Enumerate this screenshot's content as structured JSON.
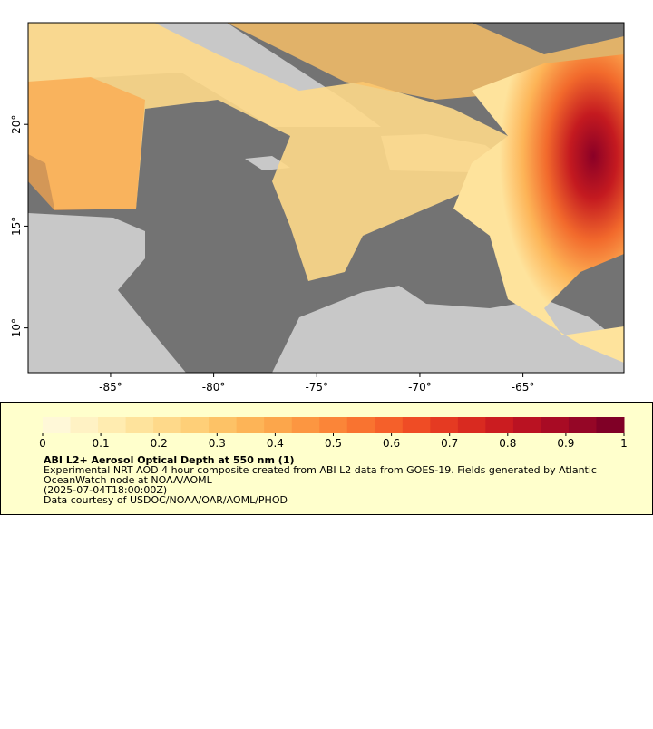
{
  "map": {
    "xlim": [
      -89.0,
      -60.1
    ],
    "ylim": [
      7.8,
      25.0
    ],
    "xticks": [
      {
        "value": -85,
        "label": "-85°"
      },
      {
        "value": -80,
        "label": "-80°"
      },
      {
        "value": -75,
        "label": "-75°"
      },
      {
        "value": -70,
        "label": "-70°"
      },
      {
        "value": -65,
        "label": "-65°"
      }
    ],
    "yticks": [
      {
        "value": 10,
        "label": "10°"
      },
      {
        "value": 15,
        "label": "15°"
      },
      {
        "value": 20,
        "label": "20°"
      }
    ]
  },
  "colorbar": {
    "lim": [
      0,
      1
    ],
    "ticks": [
      0,
      0.1,
      0.2,
      0.3,
      0.4,
      0.5,
      0.6,
      0.7,
      0.8,
      0.9,
      1
    ],
    "colors": [
      "#fff8d8",
      "#fff2c4",
      "#ffecb0",
      "#fee39c",
      "#fed98a",
      "#fecf78",
      "#fdc266",
      "#fdb457",
      "#fca64b",
      "#fc9641",
      "#fb8538",
      "#f97330",
      "#f5602a",
      "#ef4c25",
      "#e53a22",
      "#d92a20",
      "#cb1c20",
      "#ba1222",
      "#a80b24",
      "#950626",
      "#800026"
    ]
  },
  "legend": {
    "title": "ABI L2+ Aerosol Optical Depth at 550 nm (1)",
    "lines": [
      "Experimental NRT AOD 4 hour composite created from ABI L2 data from GOES-19. Fields generated by Atlantic",
      "OceanWatch node at NOAA/AOML",
      "(2025-07-04T18:00:00Z)",
      "Data courtesy of USDOC/NOAA/OAR/AOML/PHOD"
    ]
  }
}
